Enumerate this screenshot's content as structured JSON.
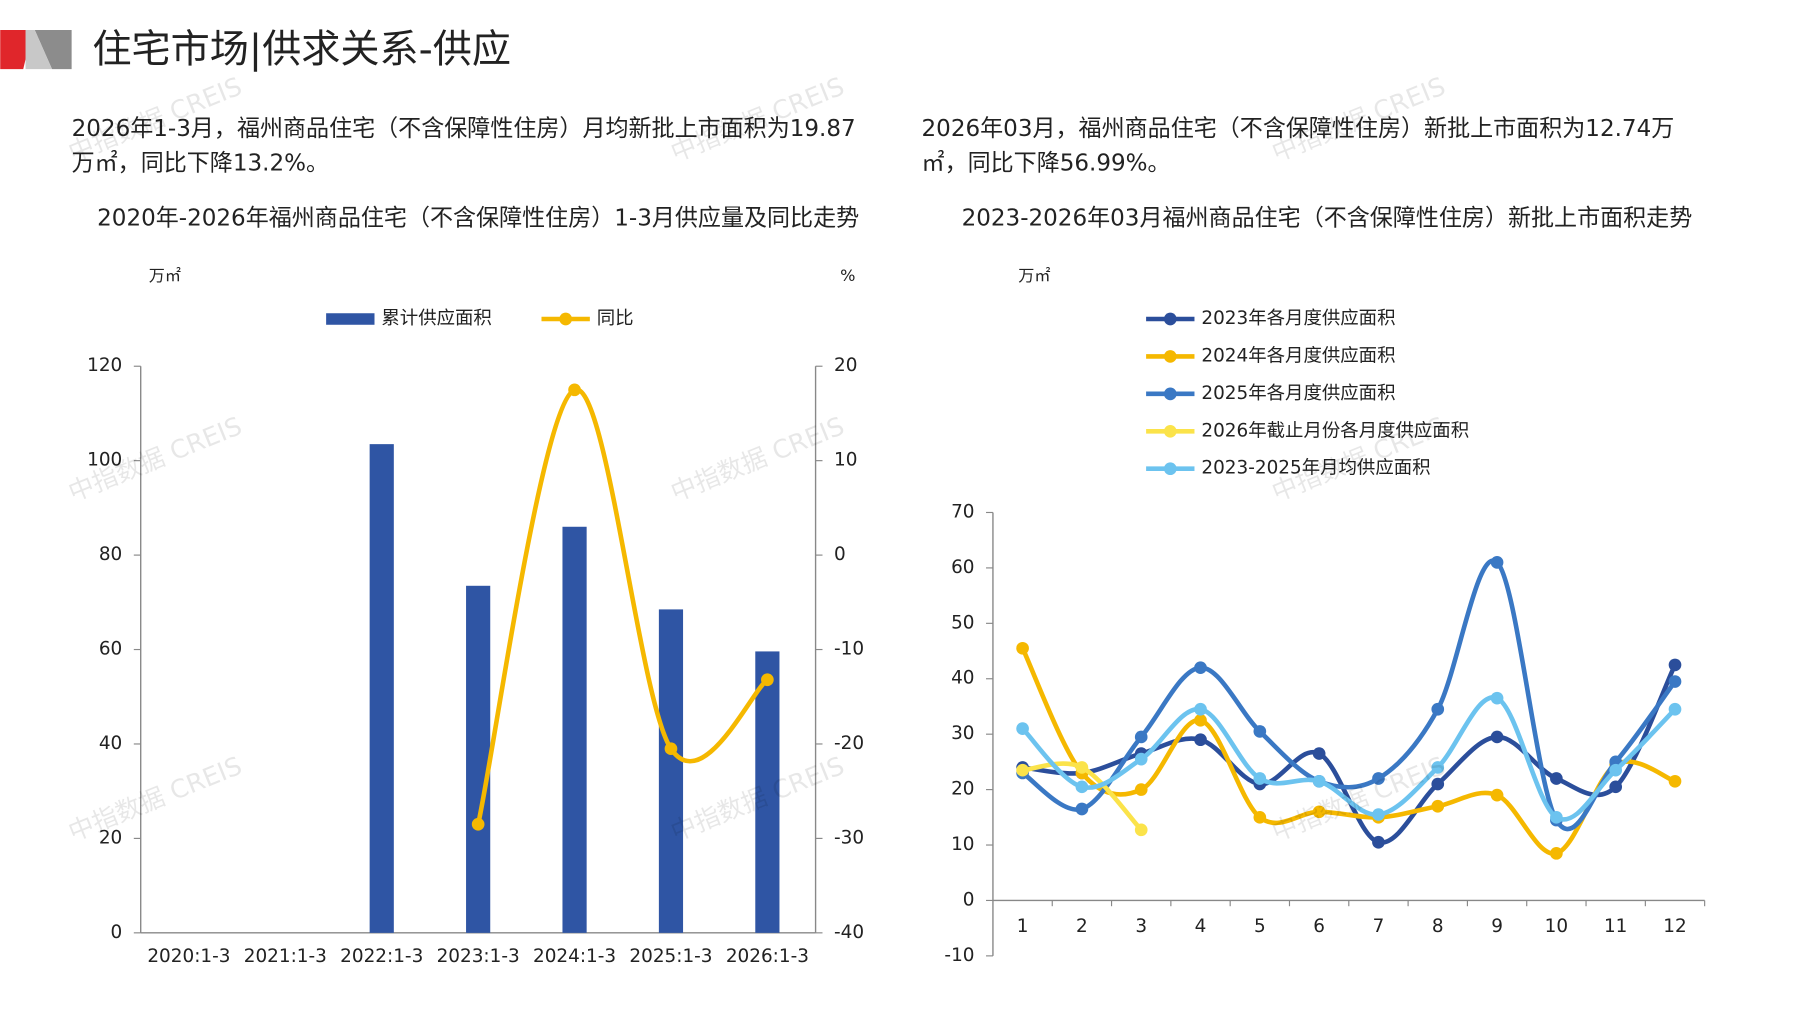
{
  "header": {
    "title": "住宅市场|供求关系-供应"
  },
  "watermark": "中指数据 CREIS",
  "paragraphs": [
    "2026年1-3月，福州商品住宅（不含保障性住房）月均新批上市面积为19.87万㎡，同比下降13.2%。",
    "2026年03月，福州商品住宅（不含保障性住房）新批上市面积为12.74万㎡，同比下降56.99%。"
  ],
  "chart_data": [
    {
      "type": "bar",
      "title": "2020年-2026年福州商品住宅（不含保障性住房）1-3月供应量及同比走势",
      "y_unit": "万㎡",
      "y2_unit": "%",
      "smooth": true,
      "categories": [
        "2020:1-3",
        "2021:1-3",
        "2022:1-3",
        "2023:1-3",
        "2024:1-3",
        "2025:1-3",
        "2026:1-3"
      ],
      "series": [
        {
          "name": "累计供应面积",
          "type": "bar",
          "color": "#2f55a4",
          "values": [
            null,
            null,
            103.5,
            73.5,
            86,
            68.5,
            59.6
          ]
        },
        {
          "name": "同比",
          "type": "line",
          "axis": "y2",
          "color": "#f5b800",
          "values": [
            null,
            null,
            null,
            -28.5,
            17.5,
            -20.5,
            -13.2
          ]
        }
      ],
      "ylim": [
        0,
        120
      ],
      "yticks": [
        0,
        20,
        40,
        60,
        80,
        100,
        120
      ],
      "y2lim": [
        -40,
        20
      ],
      "y2ticks": [
        -40,
        -30,
        -20,
        -10,
        0,
        10,
        20
      ]
    },
    {
      "type": "line",
      "title": "2023-2026年03月福州商品住宅（不含保障性住房）新批上市面积走势",
      "y_unit": "万㎡",
      "smooth": true,
      "categories": [
        "1",
        "2",
        "3",
        "4",
        "5",
        "6",
        "7",
        "8",
        "9",
        "10",
        "11",
        "12"
      ],
      "series": [
        {
          "name": "2023年各月度供应面积",
          "color": "#2b4e9b",
          "values": [
            24,
            23,
            26.5,
            29,
            21,
            26.5,
            10.5,
            21,
            29.5,
            22,
            20.5,
            42.5
          ]
        },
        {
          "name": "2024年各月度供应面积",
          "color": "#f5b800",
          "values": [
            45.5,
            23,
            20,
            32.5,
            15,
            16,
            15,
            17,
            19,
            8.5,
            24.5,
            21.5
          ]
        },
        {
          "name": "2025年各月度供应面积",
          "color": "#3a78c4",
          "values": [
            23,
            16.5,
            29.5,
            42,
            30.5,
            21.5,
            22,
            34.5,
            61,
            14.5,
            25,
            39.5
          ]
        },
        {
          "name": "2026年截止月份各月度供应面积",
          "color": "#fbe34a",
          "values": [
            23.5,
            24,
            12.74,
            null,
            null,
            null,
            null,
            null,
            null,
            null,
            null,
            null
          ]
        },
        {
          "name": "2023-2025年月均供应面积",
          "color": "#6cc3ef",
          "values": [
            31,
            20.5,
            25.5,
            34.5,
            22,
            21.5,
            15.5,
            24,
            36.5,
            15,
            23.5,
            34.5
          ]
        }
      ],
      "ylim": [
        -10,
        70
      ],
      "yticks": [
        -10,
        0,
        10,
        20,
        30,
        40,
        50,
        60,
        70
      ]
    }
  ]
}
